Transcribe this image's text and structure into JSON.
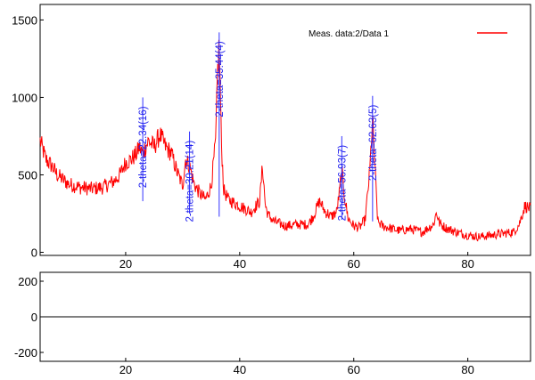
{
  "chart_data": [
    {
      "type": "line",
      "panel": "measured",
      "xlim": [
        5,
        91
      ],
      "ylim": [
        -20,
        1600
      ],
      "x_ticks": [
        20,
        40,
        60,
        80
      ],
      "x_tick_labels": [
        "20",
        "40",
        "60",
        "80"
      ],
      "y_ticks": [
        0,
        500,
        1000,
        1500
      ],
      "y_tick_labels": [
        "0",
        "500",
        "1000",
        "1500"
      ],
      "grid": false,
      "legend": {
        "position": "top-right",
        "label": "Meas. data:2/Data 1",
        "color": "#ff0000"
      },
      "series": [
        {
          "name": "Meas. data:2/Data 1",
          "color": "#ff0000",
          "x": [
            5,
            6,
            7,
            8,
            10,
            12,
            14,
            16,
            18,
            19,
            20,
            21,
            22,
            22.34,
            23,
            24,
            25,
            26,
            27,
            28,
            29,
            30,
            30.5,
            31.2,
            32,
            33,
            34,
            35,
            35.8,
            36.1,
            36.4,
            36.8,
            37.2,
            38,
            40,
            42,
            43.5,
            44,
            44.5,
            45,
            46,
            48,
            50,
            52,
            53,
            54,
            55,
            55.5,
            56,
            57,
            57.5,
            57.9,
            58.3,
            59,
            60,
            61,
            62,
            62.8,
            63.3,
            63.7,
            64.2,
            65,
            66,
            68,
            70,
            72,
            74,
            74.5,
            75,
            76,
            78,
            80,
            82,
            84,
            86,
            88,
            89,
            90,
            91
          ],
          "y": [
            720,
            600,
            560,
            500,
            440,
            420,
            410,
            420,
            460,
            500,
            580,
            600,
            640,
            680,
            640,
            720,
            680,
            760,
            680,
            640,
            520,
            430,
            600,
            560,
            440,
            380,
            340,
            430,
            720,
            1150,
            1350,
            700,
            400,
            340,
            300,
            260,
            330,
            560,
            300,
            240,
            200,
            170,
            180,
            180,
            240,
            330,
            260,
            250,
            230,
            260,
            390,
            530,
            380,
            220,
            170,
            160,
            210,
            520,
            860,
            560,
            200,
            170,
            160,
            140,
            150,
            130,
            180,
            260,
            190,
            160,
            130,
            110,
            100,
            110,
            120,
            130,
            180,
            300,
            280
          ],
          "noise_amplitude": 55
        }
      ],
      "annotations": [
        {
          "x": 23.0,
          "label": "2-theta=22.34(16)",
          "y_top": 1000,
          "y_bottom": 330
        },
        {
          "x": 31.2,
          "label": "2-theta=30.21(14)",
          "y_top": 780,
          "y_bottom": 250
        },
        {
          "x": 36.4,
          "label": "2-theta=35.44(4)",
          "y_top": 1420,
          "y_bottom": 230
        },
        {
          "x": 57.9,
          "label": "2-theta=56.93(7)",
          "y_top": 750,
          "y_bottom": 210
        },
        {
          "x": 63.3,
          "label": "2-theta=62.63(5)",
          "y_top": 1010,
          "y_bottom": 200
        }
      ]
    },
    {
      "type": "line",
      "panel": "residual",
      "xlim": [
        5,
        91
      ],
      "ylim": [
        -250,
        250
      ],
      "x_ticks": [
        20,
        40,
        60,
        80
      ],
      "x_tick_labels": [
        "20",
        "40",
        "60",
        "80"
      ],
      "y_ticks": [
        200,
        0,
        -200
      ],
      "y_tick_labels": [
        "200",
        "0",
        "-200"
      ],
      "grid": false,
      "series": [
        {
          "color": "#000000",
          "x": [
            5,
            91
          ],
          "y": [
            0,
            0
          ]
        }
      ]
    }
  ]
}
